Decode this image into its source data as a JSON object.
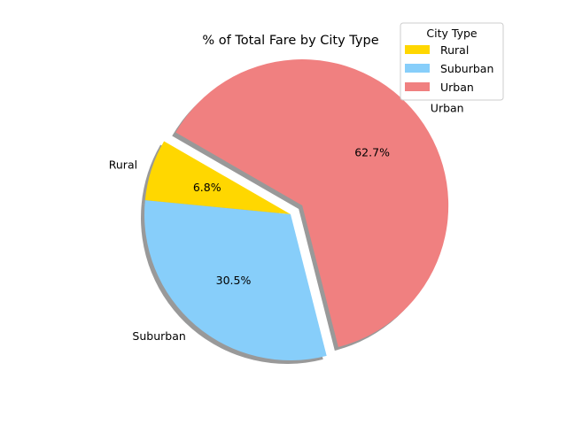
{
  "chart_data": {
    "type": "pie",
    "title": "% of Total Fare by City Type",
    "slices": [
      {
        "label": "Rural",
        "value": 6.8,
        "pct_label": "6.8%",
        "color": "#FFD700",
        "explode": 0
      },
      {
        "label": "Suburban",
        "value": 30.5,
        "pct_label": "30.5%",
        "color": "#87CEFA",
        "explode": 0
      },
      {
        "label": "Urban",
        "value": 62.7,
        "pct_label": "62.7%",
        "color": "#F08080",
        "explode": 0.1
      }
    ],
    "start_angle_deg": 150,
    "shadow": true,
    "legend": {
      "title": "City Type",
      "placement": "top-right",
      "entries": [
        "Rural",
        "Suburban",
        "Urban"
      ]
    }
  }
}
